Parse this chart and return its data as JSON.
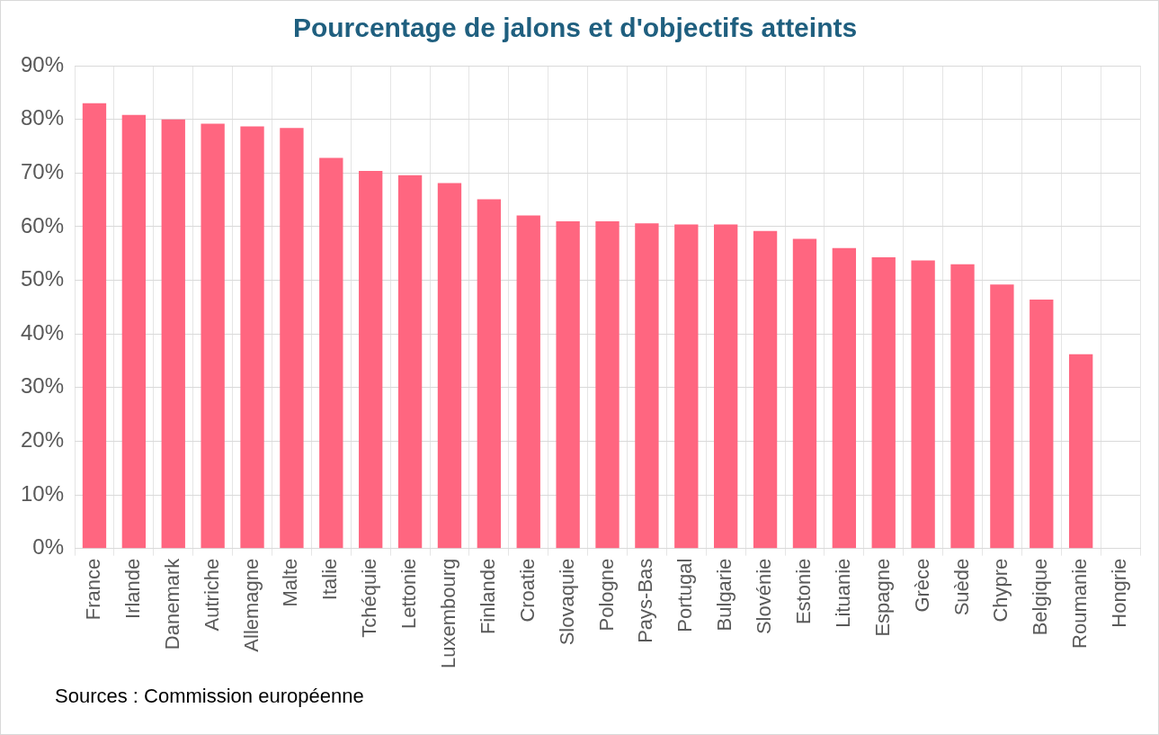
{
  "chart_data": {
    "type": "bar",
    "title": "Pourcentage de jalons et d'objectifs atteints",
    "categories": [
      "France",
      "Irlande",
      "Danemark",
      "Autriche",
      "Allemagne",
      "Malte",
      "Italie",
      "Tchéquie",
      "Lettonie",
      "Luxembourg",
      "Finlande",
      "Croatie",
      "Slovaquie",
      "Pologne",
      "Pays-Bas",
      "Portugal",
      "Bulgarie",
      "Slovénie",
      "Estonie",
      "Lituanie",
      "Espagne",
      "Grèce",
      "Suède",
      "Chypre",
      "Belgique",
      "Roumanie",
      "Hongrie"
    ],
    "values": [
      83,
      80.8,
      80,
      79.2,
      78.7,
      78.4,
      72.8,
      70.4,
      69.6,
      68.1,
      65.1,
      62.1,
      61,
      61,
      60.6,
      60.4,
      60.4,
      59.2,
      57.7,
      56,
      54.3,
      53.7,
      53,
      49.2,
      46.4,
      36.2,
      0
    ],
    "color": "#ff6680",
    "ylim": [
      0,
      90
    ],
    "yticks": [
      {
        "value": 0,
        "label": "0%"
      },
      {
        "value": 10,
        "label": "10%"
      },
      {
        "value": 20,
        "label": "20%"
      },
      {
        "value": 30,
        "label": "30%"
      },
      {
        "value": 40,
        "label": "40%"
      },
      {
        "value": 50,
        "label": "50%"
      },
      {
        "value": 60,
        "label": "60%"
      },
      {
        "value": 70,
        "label": "70%"
      },
      {
        "value": 80,
        "label": "80%"
      },
      {
        "value": 90,
        "label": "90%"
      }
    ],
    "grid": true,
    "annotations": [
      "Sources : Commission européenne"
    ]
  }
}
